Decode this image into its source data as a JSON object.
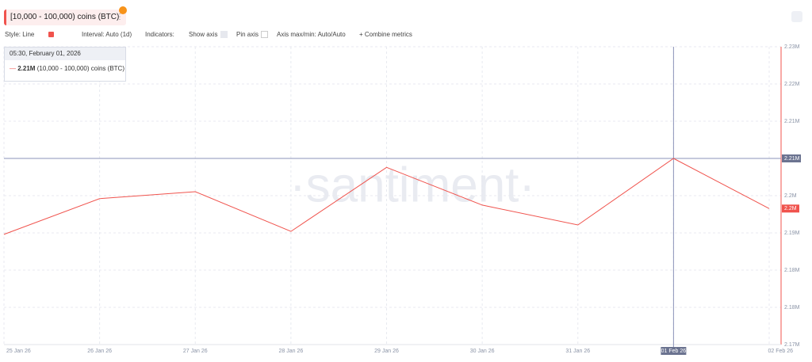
{
  "metric_chip": "[10,000 - 100,000) coins (BTC)",
  "toolbar": {
    "style": "Style: Line",
    "interval": "Interval: Auto (1d)",
    "indicators": "Indicators:",
    "show_axis": "Show axis",
    "pin_axis": "Pin axis",
    "axis_minmax": "Axis max/min: Auto/Auto",
    "combine": "+ Combine metrics"
  },
  "tooltip": {
    "date": "05:30, February 01, 2026",
    "value": "2.21M",
    "name": "(10,000 - 100,000) coins (BTC)"
  },
  "chart_data": {
    "type": "line",
    "watermark": "·santiment·",
    "categories": [
      "25 Jan 26",
      "26 Jan 26",
      "27 Jan 26",
      "28 Jan 26",
      "29 Jan 26",
      "30 Jan 26",
      "31 Jan 26",
      "01 Feb 26",
      "02 Feb 26"
    ],
    "series": [
      {
        "name": "[10,000 - 100,000) coins (BTC)",
        "color": "#f0534d",
        "values": [
          2192200,
          2199400,
          2200800,
          2192800,
          2205700,
          2198100,
          2194100,
          2207500,
          2197400
        ]
      }
    ],
    "ylim": [
      2170000,
      2230000
    ],
    "yticks": [
      {
        "value": 2170000,
        "label": "2.17M"
      },
      {
        "value": 2177500,
        "label": "2.18M"
      },
      {
        "value": 2185000,
        "label": "2.18M"
      },
      {
        "value": 2192500,
        "label": "2.19M"
      },
      {
        "value": 2200000,
        "label": "2.2M"
      },
      {
        "value": 2207500,
        "label": "2.21M"
      },
      {
        "value": 2215000,
        "label": "2.21M"
      },
      {
        "value": 2222500,
        "label": "2.22M"
      },
      {
        "value": 2230000,
        "label": "2.23M"
      }
    ],
    "crosshair_label": "2.21M",
    "last_label": "2.2M",
    "grid": true
  }
}
